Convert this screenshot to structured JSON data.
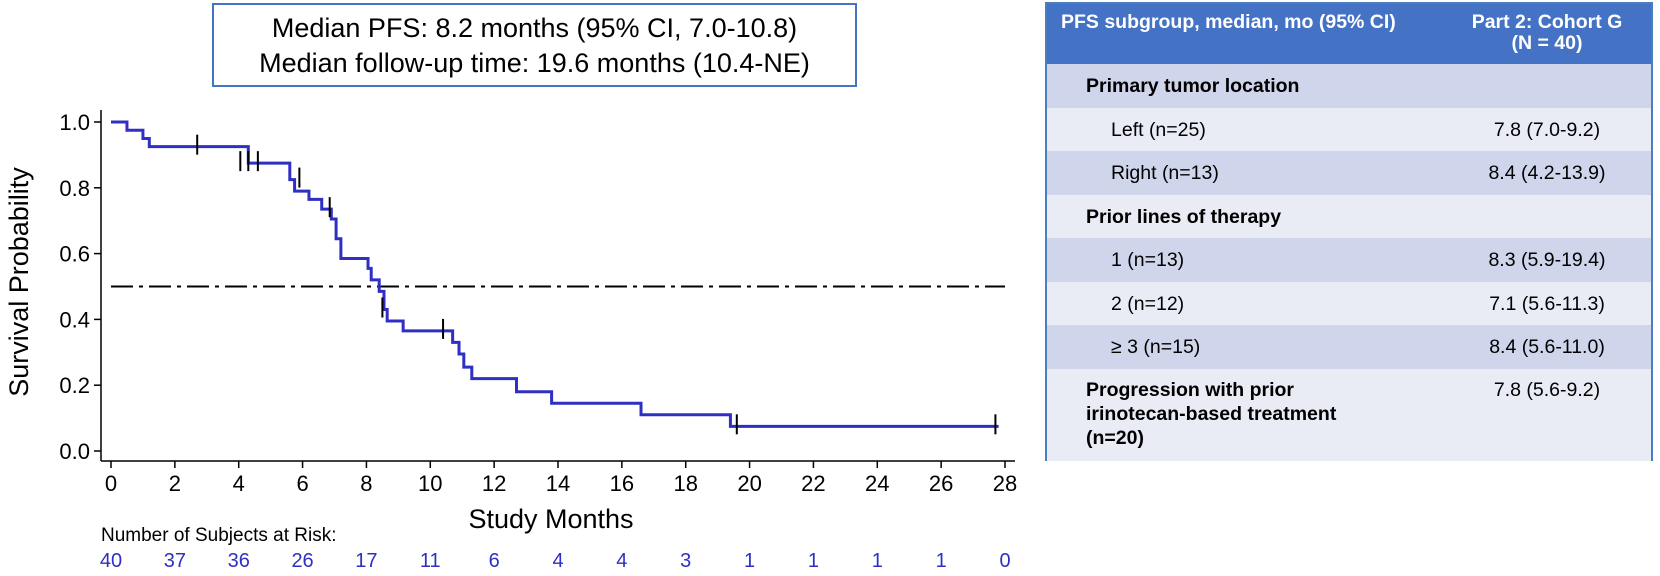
{
  "summary": {
    "median_pfs": "Median PFS: 8.2 months (95% CI, 7.0-10.8)",
    "median_followup": "Median follow-up time: 19.6 months (10.4-NE)"
  },
  "chart_data": {
    "type": "line",
    "subtype": "kaplan-meier step",
    "xlabel": "Study Months",
    "ylabel": "Survival Probability",
    "xlim": [
      0,
      28
    ],
    "ylim": [
      0,
      1.0
    ],
    "x_ticks": [
      0,
      2,
      4,
      6,
      8,
      10,
      12,
      14,
      16,
      18,
      20,
      22,
      24,
      26,
      28
    ],
    "y_ticks": [
      0.0,
      0.2,
      0.4,
      0.6,
      0.8,
      1.0
    ],
    "y_tick_labels": [
      "0.0",
      "0.2",
      "0.4",
      "0.6",
      "0.8",
      "1.0"
    ],
    "grid": false,
    "series": [
      {
        "curve_color": "#2f2fc4",
        "steps": [
          [
            0,
            1.0
          ],
          [
            0.5,
            0.975
          ],
          [
            1.0,
            0.95
          ],
          [
            1.2,
            0.925
          ],
          [
            4.3,
            0.875
          ],
          [
            5.6,
            0.825
          ],
          [
            5.75,
            0.79
          ],
          [
            6.2,
            0.765
          ],
          [
            6.6,
            0.735
          ],
          [
            6.9,
            0.705
          ],
          [
            7.05,
            0.645
          ],
          [
            7.2,
            0.585
          ],
          [
            8.05,
            0.555
          ],
          [
            8.15,
            0.52
          ],
          [
            8.4,
            0.485
          ],
          [
            8.55,
            0.43
          ],
          [
            8.65,
            0.395
          ],
          [
            9.15,
            0.365
          ],
          [
            10.7,
            0.33
          ],
          [
            10.9,
            0.295
          ],
          [
            11.05,
            0.255
          ],
          [
            11.3,
            0.22
          ],
          [
            12.7,
            0.18
          ],
          [
            13.8,
            0.145
          ],
          [
            16.6,
            0.11
          ],
          [
            19.4,
            0.075
          ],
          [
            27.8,
            0.075
          ]
        ],
        "censor_marks": [
          [
            2.7,
            0.925
          ],
          [
            4.05,
            0.875
          ],
          [
            4.3,
            0.875
          ],
          [
            4.6,
            0.875
          ],
          [
            5.9,
            0.825
          ],
          [
            6.85,
            0.735
          ],
          [
            8.5,
            0.43
          ],
          [
            10.4,
            0.365
          ],
          [
            19.6,
            0.075
          ],
          [
            27.7,
            0.075
          ]
        ]
      }
    ],
    "median_line": {
      "y": 0.5,
      "style": "dash-dot",
      "color": "#000000"
    },
    "risk_table": {
      "title": "Number of Subjects at Risk:",
      "x": [
        0,
        2,
        4,
        6,
        8,
        10,
        12,
        14,
        16,
        18,
        20,
        22,
        24,
        26,
        28
      ],
      "counts": [
        "40",
        "37",
        "36",
        "26",
        "17",
        "11",
        "6",
        "4",
        "4",
        "3",
        "1",
        "1",
        "1",
        "1",
        "0"
      ],
      "color": "#2f2fc4"
    }
  },
  "table": {
    "header_left": "PFS subgroup, median, mo (95% CI)",
    "header_right_line1": "Part 2: Cohort G",
    "header_right_line2": "(N = 40)",
    "header_color": "#4472c4",
    "rows": [
      {
        "label": "Primary tumor location",
        "value": ""
      },
      {
        "label": "Left (n=25)",
        "value": "7.8 (7.0-9.2)"
      },
      {
        "label": "Right (n=13)",
        "value": "8.4 (4.2-13.9)"
      },
      {
        "label": "Prior lines of therapy",
        "value": ""
      },
      {
        "label": "1 (n=13)",
        "value": "8.3 (5.9-19.4)"
      },
      {
        "label": "2 (n=12)",
        "value": "7.1 (5.6-11.3)"
      },
      {
        "label": "≥ 3 (n=15)",
        "value": "8.4 (5.6-11.0)"
      },
      {
        "label": "Progression with prior irinotecan-based treatment (n=20)",
        "value": "7.8 (5.6-9.2)"
      }
    ]
  }
}
